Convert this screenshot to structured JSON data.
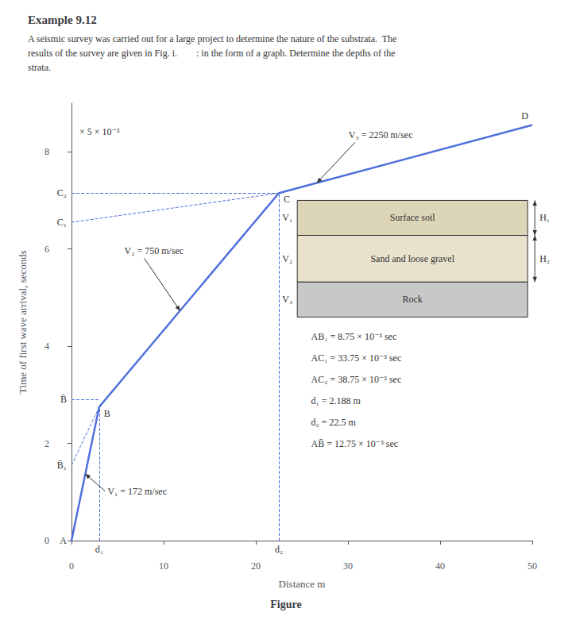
{
  "chart_data": {
    "type": "line",
    "title": "Example 9.12",
    "subtitle": [
      "A seismic survey was carried out for a large project to determine the nature of the substrata.  The",
      "results of the survey are given in Fig. i.        : in the form of a graph. Determine the depths of the",
      "strata."
    ],
    "caption": "Figure",
    "xlabel": "Distance m",
    "ylabel": "Time of first wave arrival, seconds",
    "x": [
      0,
      3.0,
      22.5,
      50
    ],
    "values": [
      0,
      2.75,
      7.15,
      8.55
    ],
    "point_labels": [
      "A",
      "B",
      "C",
      "D"
    ],
    "line_style": "solid",
    "xlim": [
      0,
      50
    ],
    "ylim": [
      0,
      9
    ],
    "xticks": [
      0,
      10,
      20,
      30,
      40,
      50
    ],
    "yticks": [
      0,
      2,
      4,
      6,
      8
    ],
    "grid": false,
    "guides": [
      {
        "label": "d₁",
        "x": [
          3.0,
          3.0
        ],
        "y": [
          0,
          2.75
        ]
      },
      {
        "label": "d₂",
        "x": [
          22.5,
          22.5
        ],
        "y": [
          0,
          7.15
        ]
      },
      {
        "label": "C₂",
        "x": [
          0,
          22.5
        ],
        "y": [
          7.15,
          7.15
        ]
      },
      {
        "label": "C₁",
        "x": [
          0,
          22.5
        ],
        "y": [
          6.55,
          7.15
        ]
      },
      {
        "label": "B̄",
        "x": [
          0,
          3.0
        ],
        "y": [
          2.9,
          2.9
        ]
      },
      {
        "label": "B̄₁",
        "x": [
          0,
          3.0
        ],
        "y": [
          1.55,
          2.75
        ]
      }
    ],
    "scale_note": "× 5 × 10⁻³",
    "segment_labels": [
      "V₁ = 172 m/sec",
      "V₂ = 750 m/sec",
      "V₃ = 2250 m/sec"
    ],
    "strata": [
      {
        "name": "Surface soil",
        "velocity": "V₁",
        "thickness": "H₁",
        "color": "#ddd5b8"
      },
      {
        "name": "Sand and loose gravel",
        "velocity": "V₂",
        "thickness": "H₂",
        "color": "#e8e2cd"
      },
      {
        "name": "Rock",
        "velocity": "V₃",
        "color": "#c8c8c8"
      }
    ],
    "notes": [
      "AB₁ = 8.75 × 10⁻³ sec",
      "AC₁ = 33.75 × 10⁻³ sec",
      "AC₂ = 38.75 × 10⁻³ sec",
      "d₁ = 2.188 m",
      "d₂ = 22.5 m",
      "AB̄ = 12.75 × 10⁻³ sec"
    ]
  }
}
